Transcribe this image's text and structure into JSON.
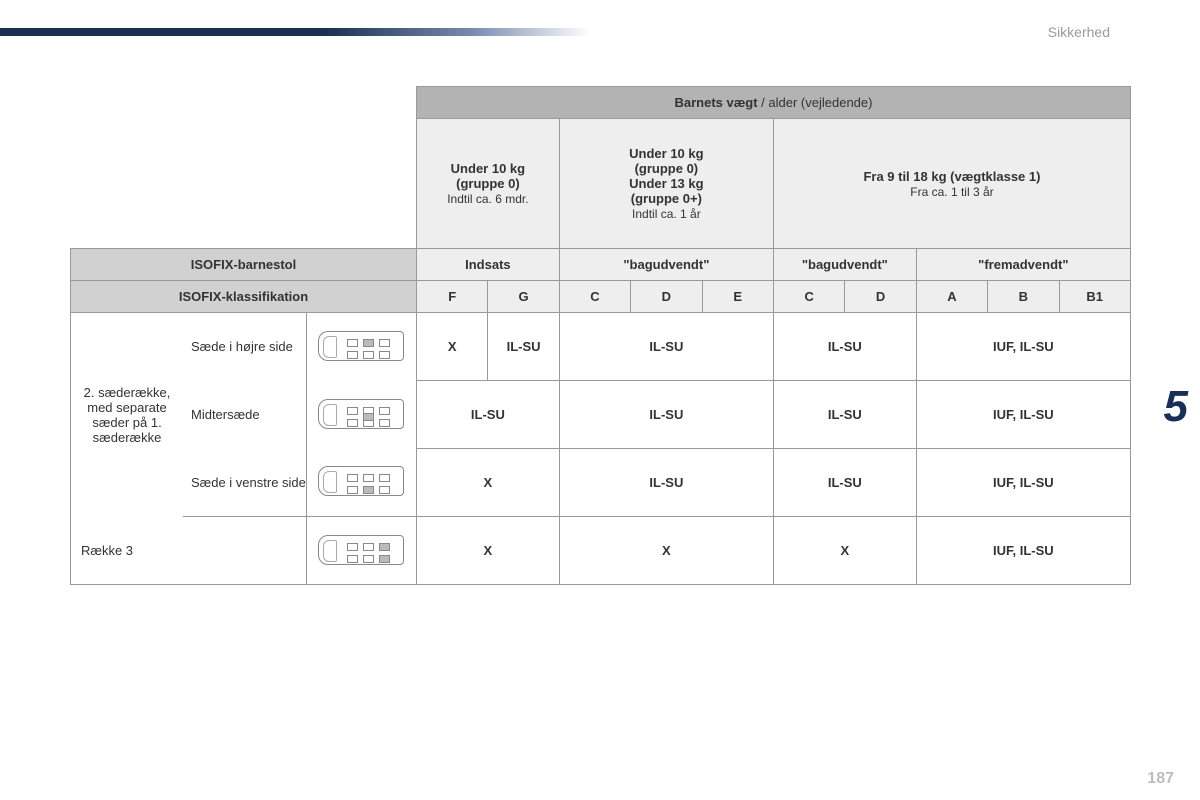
{
  "header": {
    "section": "Sikkerhed",
    "chapter": "5",
    "page": "187"
  },
  "colors": {
    "stripe_dark": "#1a2f55",
    "hdr_dark": "#b3b3b3",
    "hdr_light": "#eeeeee",
    "hdr_gray": "#d1d1d1",
    "border": "#9a9a9a",
    "text_muted": "#9a9a9a"
  },
  "table": {
    "topHeader": {
      "bold": "Barnets vægt",
      "rest": " / alder (vejledende)"
    },
    "weightCols": [
      {
        "l1": "Under 10 kg",
        "l2": "(gruppe 0)",
        "l3": "Indtil ca. 6 mdr.",
        "span": 2
      },
      {
        "l1": "Under 10 kg",
        "l2": "(gruppe 0)",
        "l3": "Under 13 kg",
        "l4": "(gruppe 0+)",
        "l5": "Indtil ca. 1 år",
        "span": 3
      },
      {
        "l1": "Fra 9 til 18 kg (vægtklasse 1)",
        "l2": "Fra ca. 1 til 3 år",
        "span": 5
      }
    ],
    "row_barnestol": {
      "label": "ISOFIX-barnestol",
      "cells": [
        {
          "text": "Indsats",
          "span": 2
        },
        {
          "text": "\"bagudvendt\"",
          "span": 3
        },
        {
          "text": "\"bagudvendt\"",
          "span": 2
        },
        {
          "text": "\"fremadvendt\"",
          "span": 3
        }
      ]
    },
    "row_klass": {
      "label": "ISOFIX-klassifikation",
      "cells": [
        "F",
        "G",
        "C",
        "D",
        "E",
        "C",
        "D",
        "A",
        "B",
        "B1"
      ]
    },
    "body": {
      "groupLabel": "2. sæderække, med separate sæder på 1. sæderække",
      "rows": [
        {
          "seat": "Sæde i højre side",
          "hl": "r2-right",
          "vals": [
            {
              "t": "X",
              "s": 1
            },
            {
              "t": "IL-SU",
              "s": 1
            },
            {
              "t": "IL-SU",
              "s": 3
            },
            {
              "t": "IL-SU",
              "s": 2
            },
            {
              "t": "IUF, IL-SU",
              "s": 3
            }
          ]
        },
        {
          "seat": "Midtersæde",
          "hl": "r2-mid",
          "vals": [
            {
              "t": "IL-SU",
              "s": 2
            },
            {
              "t": "IL-SU",
              "s": 3
            },
            {
              "t": "IL-SU",
              "s": 2
            },
            {
              "t": "IUF, IL-SU",
              "s": 3
            }
          ]
        },
        {
          "seat": "Sæde i venstre side",
          "hl": "r2-left",
          "vals": [
            {
              "t": "X",
              "s": 2
            },
            {
              "t": "IL-SU",
              "s": 3
            },
            {
              "t": "IL-SU",
              "s": 2
            },
            {
              "t": "IUF, IL-SU",
              "s": 3
            }
          ]
        }
      ],
      "lastRow": {
        "label": "Række 3",
        "hl": "r3",
        "vals": [
          {
            "t": "X",
            "s": 2
          },
          {
            "t": "X",
            "s": 3
          },
          {
            "t": "X",
            "s": 2
          },
          {
            "t": "IUF, IL-SU",
            "s": 3
          }
        ]
      }
    }
  }
}
